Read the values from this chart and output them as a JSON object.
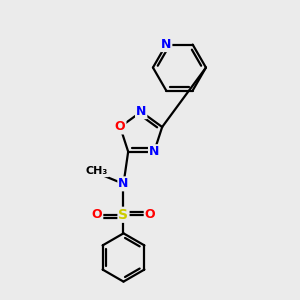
{
  "bg_color": "#ebebeb",
  "bond_color": "#000000",
  "bond_width": 1.6,
  "atom_colors": {
    "N": "#0000ff",
    "O": "#ff0000",
    "S": "#cccc00",
    "C": "#000000"
  },
  "font_size": 9
}
